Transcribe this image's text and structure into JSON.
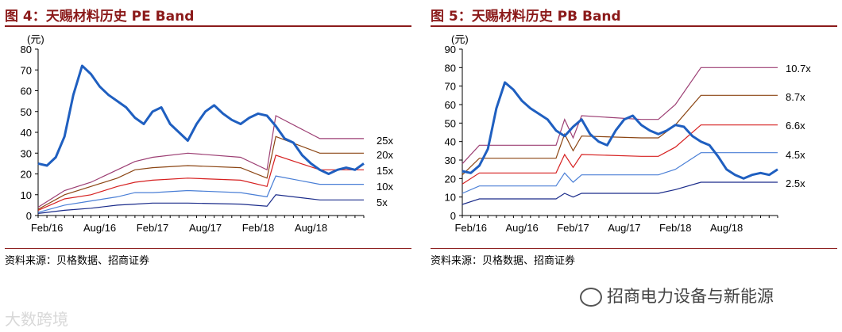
{
  "left": {
    "title": "图 4：天赐材料历史 PE Band",
    "source": "资料来源：贝格数据、招商证券"
  },
  "right": {
    "title": "图 5：天赐材料历史 PB Band",
    "source": "资料来源：贝格数据、招商证券"
  },
  "watermark": {
    "wechat": "招商电力设备与新能源",
    "corner": "大数跨境"
  },
  "colors": {
    "title": "#8b1a1a",
    "price": "#1f5fc0",
    "band_top": "#9c3e73",
    "band_2": "#8b4513",
    "band_3": "#d62020",
    "band_4": "#4a7fd6",
    "band_5": "#1a2b8a"
  },
  "chart_data": [
    {
      "type": "line",
      "title": "图 4：天赐材料历史 PE Band",
      "ylabel": "(元)",
      "ylim": [
        0,
        80
      ],
      "yticks": [
        0,
        10,
        20,
        30,
        40,
        50,
        60,
        70,
        80
      ],
      "x_range": [
        "2016-01",
        "2019-02"
      ],
      "xticks": [
        "Feb/16",
        "Aug/16",
        "Feb/17",
        "Aug/17",
        "Feb/18",
        "Aug/18"
      ],
      "series": [
        {
          "name": "price",
          "points": [
            [
              "2016-01",
              25
            ],
            [
              "2016-02",
              24
            ],
            [
              "2016-03",
              28
            ],
            [
              "2016-04",
              38
            ],
            [
              "2016-05",
              58
            ],
            [
              "2016-06",
              72
            ],
            [
              "2016-07",
              68
            ],
            [
              "2016-08",
              62
            ],
            [
              "2016-09",
              58
            ],
            [
              "2016-10",
              55
            ],
            [
              "2016-11",
              52
            ],
            [
              "2016-12",
              47
            ],
            [
              "2017-01",
              44
            ],
            [
              "2017-02",
              50
            ],
            [
              "2017-03",
              52
            ],
            [
              "2017-04",
              44
            ],
            [
              "2017-05",
              40
            ],
            [
              "2017-06",
              36
            ],
            [
              "2017-07",
              44
            ],
            [
              "2017-08",
              50
            ],
            [
              "2017-09",
              53
            ],
            [
              "2017-10",
              49
            ],
            [
              "2017-11",
              46
            ],
            [
              "2017-12",
              44
            ],
            [
              "2018-01",
              47
            ],
            [
              "2018-02",
              49
            ],
            [
              "2018-03",
              48
            ],
            [
              "2018-04",
              43
            ],
            [
              "2018-05",
              37
            ],
            [
              "2018-06",
              35
            ],
            [
              "2018-07",
              29
            ],
            [
              "2018-08",
              25
            ],
            [
              "2018-09",
              22
            ],
            [
              "2018-10",
              20
            ],
            [
              "2018-11",
              22
            ],
            [
              "2018-12",
              23
            ],
            [
              "2019-01",
              22
            ],
            [
              "2019-02",
              25
            ]
          ]
        },
        {
          "name": "25x",
          "points": [
            [
              "2016-01",
              4
            ],
            [
              "2016-04",
              12
            ],
            [
              "2016-07",
              16
            ],
            [
              "2016-10",
              22
            ],
            [
              "2016-12",
              26
            ],
            [
              "2017-02",
              28
            ],
            [
              "2017-06",
              30
            ],
            [
              "2017-12",
              28
            ],
            [
              "2018-03",
              22
            ],
            [
              "2018-04",
              48
            ],
            [
              "2018-09",
              37
            ],
            [
              "2019-02",
              37
            ]
          ]
        },
        {
          "name": "20x",
          "points": [
            [
              "2016-01",
              3
            ],
            [
              "2016-04",
              10
            ],
            [
              "2016-07",
              14
            ],
            [
              "2016-10",
              18
            ],
            [
              "2016-12",
              22
            ],
            [
              "2017-02",
              23
            ],
            [
              "2017-06",
              24
            ],
            [
              "2017-12",
              23
            ],
            [
              "2018-03",
              18
            ],
            [
              "2018-04",
              38
            ],
            [
              "2018-09",
              30
            ],
            [
              "2019-02",
              30
            ]
          ]
        },
        {
          "name": "15x",
          "points": [
            [
              "2016-01",
              2.5
            ],
            [
              "2016-04",
              8
            ],
            [
              "2016-07",
              10
            ],
            [
              "2016-10",
              14
            ],
            [
              "2016-12",
              16
            ],
            [
              "2017-02",
              17
            ],
            [
              "2017-06",
              18
            ],
            [
              "2017-12",
              17
            ],
            [
              "2018-03",
              14
            ],
            [
              "2018-04",
              29
            ],
            [
              "2018-09",
              22
            ],
            [
              "2019-02",
              22
            ]
          ]
        },
        {
          "name": "10x",
          "points": [
            [
              "2016-01",
              1.5
            ],
            [
              "2016-04",
              5
            ],
            [
              "2016-07",
              7
            ],
            [
              "2016-10",
              9
            ],
            [
              "2016-12",
              11
            ],
            [
              "2017-02",
              11
            ],
            [
              "2017-06",
              12
            ],
            [
              "2017-12",
              11
            ],
            [
              "2018-03",
              9
            ],
            [
              "2018-04",
              19
            ],
            [
              "2018-09",
              15
            ],
            [
              "2019-02",
              15
            ]
          ]
        },
        {
          "name": "5x",
          "points": [
            [
              "2016-01",
              1
            ],
            [
              "2016-04",
              2.5
            ],
            [
              "2016-07",
              3.5
            ],
            [
              "2016-10",
              5
            ],
            [
              "2016-12",
              5.5
            ],
            [
              "2017-02",
              6
            ],
            [
              "2017-06",
              6
            ],
            [
              "2017-12",
              5.5
            ],
            [
              "2018-03",
              4.5
            ],
            [
              "2018-04",
              10
            ],
            [
              "2018-09",
              7.5
            ],
            [
              "2019-02",
              7.5
            ]
          ]
        }
      ],
      "band_labels": [
        "25x",
        "20x",
        "15x",
        "10x",
        "5x"
      ]
    },
    {
      "type": "line",
      "title": "图 5：天赐材料历史 PB Band",
      "ylabel": "(元)",
      "ylim": [
        0,
        90
      ],
      "yticks": [
        0,
        10,
        20,
        30,
        40,
        50,
        60,
        70,
        80,
        90
      ],
      "x_range": [
        "2016-01",
        "2019-02"
      ],
      "xticks": [
        "Feb/16",
        "Aug/16",
        "Feb/17",
        "Aug/17",
        "Feb/18",
        "Aug/18"
      ],
      "series": [
        {
          "name": "price",
          "points": [
            [
              "2016-01",
              24
            ],
            [
              "2016-02",
              23
            ],
            [
              "2016-03",
              27
            ],
            [
              "2016-04",
              36
            ],
            [
              "2016-05",
              58
            ],
            [
              "2016-06",
              72
            ],
            [
              "2016-07",
              68
            ],
            [
              "2016-08",
              62
            ],
            [
              "2016-09",
              58
            ],
            [
              "2016-10",
              55
            ],
            [
              "2016-11",
              52
            ],
            [
              "2016-12",
              46
            ],
            [
              "2017-01",
              43
            ],
            [
              "2017-02",
              48
            ],
            [
              "2017-03",
              52
            ],
            [
              "2017-04",
              44
            ],
            [
              "2017-05",
              40
            ],
            [
              "2017-06",
              38
            ],
            [
              "2017-07",
              46
            ],
            [
              "2017-08",
              52
            ],
            [
              "2017-09",
              54
            ],
            [
              "2017-10",
              49
            ],
            [
              "2017-11",
              46
            ],
            [
              "2017-12",
              44
            ],
            [
              "2018-01",
              46
            ],
            [
              "2018-02",
              49
            ],
            [
              "2018-03",
              48
            ],
            [
              "2018-04",
              43
            ],
            [
              "2018-05",
              40
            ],
            [
              "2018-06",
              38
            ],
            [
              "2018-07",
              32
            ],
            [
              "2018-08",
              25
            ],
            [
              "2018-09",
              22
            ],
            [
              "2018-10",
              20
            ],
            [
              "2018-11",
              22
            ],
            [
              "2018-12",
              23
            ],
            [
              "2019-01",
              22
            ],
            [
              "2019-02",
              25
            ]
          ]
        },
        {
          "name": "10.7x",
          "points": [
            [
              "2016-01",
              28
            ],
            [
              "2016-03",
              38
            ],
            [
              "2016-12",
              38
            ],
            [
              "2017-01",
              52
            ],
            [
              "2017-02",
              42
            ],
            [
              "2017-03",
              54
            ],
            [
              "2017-10",
              52
            ],
            [
              "2017-12",
              52
            ],
            [
              "2018-02",
              60
            ],
            [
              "2018-05",
              80
            ],
            [
              "2019-02",
              80
            ]
          ]
        },
        {
          "name": "8.7x",
          "points": [
            [
              "2016-01",
              22
            ],
            [
              "2016-03",
              31
            ],
            [
              "2016-12",
              31
            ],
            [
              "2017-01",
              44
            ],
            [
              "2017-02",
              35
            ],
            [
              "2017-03",
              43
            ],
            [
              "2017-10",
              42
            ],
            [
              "2017-12",
              42
            ],
            [
              "2018-02",
              49
            ],
            [
              "2018-05",
              65
            ],
            [
              "2019-02",
              65
            ]
          ]
        },
        {
          "name": "6.6x",
          "points": [
            [
              "2016-01",
              17
            ],
            [
              "2016-03",
              23
            ],
            [
              "2016-12",
              23
            ],
            [
              "2017-01",
              33
            ],
            [
              "2017-02",
              26
            ],
            [
              "2017-03",
              33
            ],
            [
              "2017-10",
              32
            ],
            [
              "2017-12",
              32
            ],
            [
              "2018-02",
              37
            ],
            [
              "2018-05",
              49
            ],
            [
              "2019-02",
              49
            ]
          ]
        },
        {
          "name": "4.5x",
          "points": [
            [
              "2016-01",
              12
            ],
            [
              "2016-03",
              16
            ],
            [
              "2016-12",
              16
            ],
            [
              "2017-01",
              23
            ],
            [
              "2017-02",
              18
            ],
            [
              "2017-03",
              22
            ],
            [
              "2017-10",
              22
            ],
            [
              "2017-12",
              22
            ],
            [
              "2018-02",
              25
            ],
            [
              "2018-05",
              34
            ],
            [
              "2019-02",
              34
            ]
          ]
        },
        {
          "name": "2.5x",
          "points": [
            [
              "2016-01",
              6
            ],
            [
              "2016-03",
              9
            ],
            [
              "2016-12",
              9
            ],
            [
              "2017-01",
              12
            ],
            [
              "2017-02",
              10
            ],
            [
              "2017-03",
              12
            ],
            [
              "2017-10",
              12
            ],
            [
              "2017-12",
              12
            ],
            [
              "2018-02",
              14
            ],
            [
              "2018-05",
              18
            ],
            [
              "2019-02",
              18
            ]
          ]
        }
      ],
      "band_labels": [
        "10.7x",
        "8.7x",
        "6.6x",
        "4.5x",
        "2.5x"
      ]
    }
  ]
}
